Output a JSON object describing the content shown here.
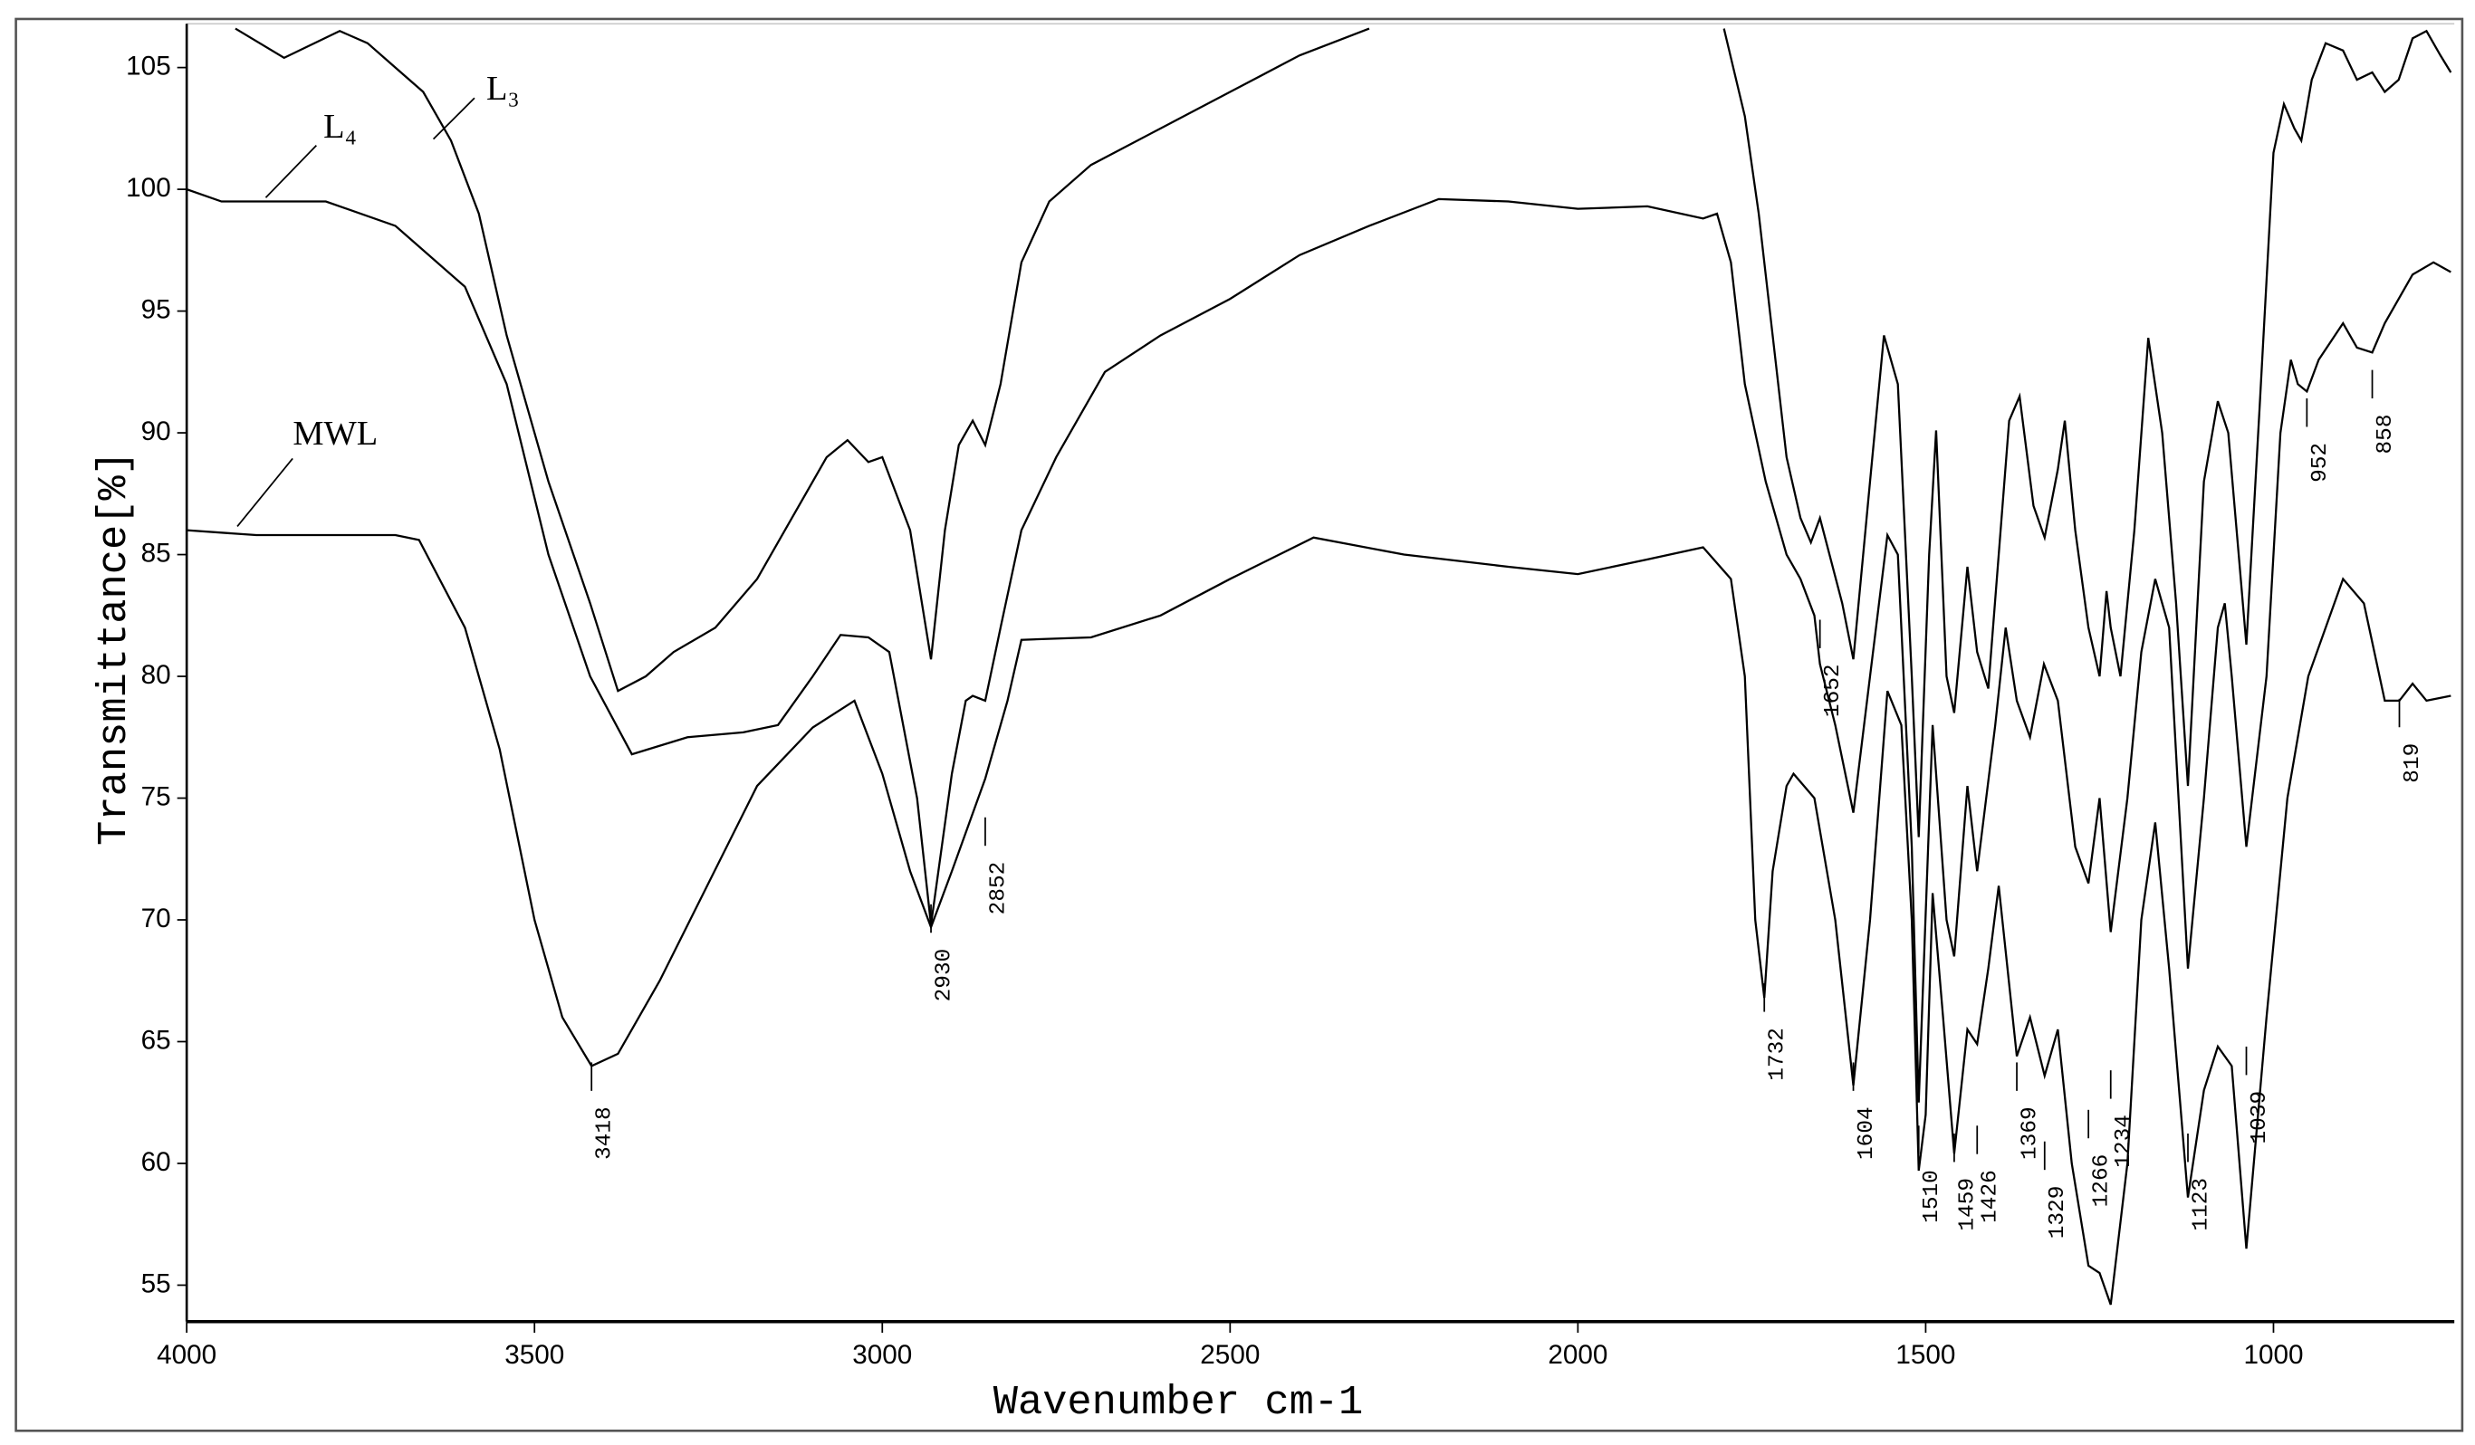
{
  "chart_data": {
    "type": "line",
    "x_label": "Wavenumber cm-1",
    "y_label": "Transmittance[%]",
    "xlim": [
      4000,
      740
    ],
    "xticks": [
      4000,
      3500,
      3000,
      2500,
      2000,
      1500,
      1000
    ],
    "ylim": [
      53.5,
      106.8
    ],
    "yticks": [
      55,
      60,
      65,
      70,
      75,
      80,
      85,
      90,
      95,
      100,
      105
    ],
    "peak_labels": [
      3418,
      2930,
      2852,
      1732,
      1652,
      1604,
      1510,
      1459,
      1426,
      1369,
      1329,
      1266,
      1234,
      1123,
      1039,
      952,
      858,
      819
    ],
    "series": [
      {
        "name": "MWL",
        "color": "#000000",
        "x": [
          4000,
          3900,
          3800,
          3700,
          3666,
          3600,
          3550,
          3500,
          3460,
          3418,
          3380,
          3320,
          3250,
          3180,
          3100,
          3040,
          3000,
          2960,
          2930,
          2900,
          2852,
          2820,
          2800,
          2700,
          2600,
          2500,
          2380,
          2250,
          2100,
          2000,
          1900,
          1820,
          1780,
          1760,
          1745,
          1732,
          1720,
          1700,
          1690,
          1660,
          1630,
          1604,
          1580,
          1555,
          1535,
          1520,
          1510,
          1500,
          1490,
          1475,
          1459,
          1440,
          1426,
          1410,
          1395,
          1369,
          1350,
          1329,
          1310,
          1290,
          1266,
          1250,
          1234,
          1210,
          1190,
          1170,
          1150,
          1123,
          1100,
          1080,
          1060,
          1039,
          1010,
          980,
          950,
          900,
          870,
          840,
          819,
          800,
          780,
          745
        ],
        "values": [
          86,
          85.8,
          85.8,
          85.8,
          85.6,
          82,
          77,
          70,
          66,
          64,
          64.5,
          67.5,
          71.5,
          75.5,
          77.9,
          79,
          76,
          72,
          69.7,
          72,
          75.8,
          79,
          81.5,
          81.6,
          82.5,
          84,
          85.7,
          85,
          84.5,
          84.2,
          84.8,
          85.3,
          84,
          80,
          70,
          66.8,
          72,
          75.5,
          76,
          75,
          70,
          63.2,
          70,
          79.4,
          78,
          70,
          59.7,
          62,
          71.1,
          66,
          60.4,
          65.5,
          64.9,
          68,
          71.4,
          64.4,
          66,
          63.6,
          65.5,
          60,
          55.8,
          55.5,
          54.2,
          60,
          70,
          74,
          68,
          58.6,
          63,
          64.8,
          64,
          56.5,
          66,
          75,
          80,
          84,
          83,
          79,
          79,
          79.7,
          79,
          79.2
        ]
      },
      {
        "name": "L₄",
        "color": "#000000",
        "x": [
          4000,
          3950,
          3800,
          3700,
          3600,
          3540,
          3480,
          3420,
          3360,
          3280,
          3200,
          3150,
          3100,
          3060,
          3020,
          2990,
          2950,
          2930,
          2900,
          2880,
          2870,
          2852,
          2830,
          2800,
          2750,
          2680,
          2600,
          2500,
          2400,
          2300,
          2200,
          2100,
          2000,
          1900,
          1820,
          1800,
          1780,
          1760,
          1730,
          1700,
          1680,
          1660,
          1652,
          1630,
          1604,
          1580,
          1555,
          1540,
          1520,
          1510,
          1490,
          1470,
          1459,
          1440,
          1426,
          1400,
          1385,
          1369,
          1350,
          1330,
          1310,
          1285,
          1266,
          1250,
          1234,
          1210,
          1190,
          1170,
          1150,
          1123,
          1100,
          1080,
          1070,
          1060,
          1039,
          1010,
          990,
          975,
          965,
          952,
          935,
          900,
          880,
          858,
          840,
          800,
          770,
          745
        ],
        "values": [
          100,
          99.5,
          99.5,
          98.5,
          96,
          92,
          85,
          80,
          76.8,
          77.5,
          77.7,
          78,
          80,
          81.7,
          81.6,
          81,
          75,
          69.8,
          76,
          79,
          79.2,
          79,
          82,
          86,
          89,
          92.5,
          94,
          95.5,
          97.3,
          98.5,
          99.6,
          99.5,
          99.2,
          99.3,
          98.8,
          99,
          97,
          92,
          88,
          85,
          84,
          82.5,
          80.5,
          78,
          74.4,
          80,
          85.8,
          85,
          73,
          62.5,
          78,
          70,
          68.5,
          75.5,
          72,
          78,
          82,
          79,
          77.5,
          80.5,
          79,
          73,
          71.5,
          75,
          69.5,
          75,
          81,
          84,
          82,
          68,
          75,
          82,
          83,
          80,
          73,
          80,
          90,
          93,
          92,
          91.7,
          93,
          94.5,
          93.5,
          93.3,
          94.5,
          96.5,
          97,
          96.6
        ]
      },
      {
        "name": "L₃",
        "color": "#000000",
        "x": [
          3930,
          3860,
          3780,
          3740,
          3700,
          3660,
          3620,
          3580,
          3540,
          3480,
          3420,
          3380,
          3340,
          3300,
          3240,
          3180,
          3130,
          3080,
          3050,
          3020,
          3000,
          2960,
          2930,
          2910,
          2890,
          2870,
          2852,
          2830,
          2800,
          2760,
          2700,
          2600,
          2500,
          2400,
          2300,
          2000,
          1790,
          1760,
          1740,
          1720,
          1700,
          1680,
          1665,
          1652,
          1620,
          1604,
          1580,
          1560,
          1540,
          1520,
          1510,
          1495,
          1485,
          1470,
          1459,
          1440,
          1426,
          1410,
          1395,
          1380,
          1365,
          1345,
          1329,
          1310,
          1300,
          1285,
          1266,
          1250,
          1240,
          1234,
          1220,
          1200,
          1180,
          1160,
          1140,
          1123,
          1100,
          1080,
          1065,
          1050,
          1039,
          1020,
          1000,
          985,
          970,
          960,
          945,
          925,
          900,
          880,
          858,
          840,
          820,
          800,
          780,
          760,
          745
        ],
        "values": [
          106.6,
          105.4,
          106.5,
          106,
          105,
          104,
          102,
          99,
          94,
          88,
          83,
          79.4,
          80,
          81,
          82,
          84,
          86.5,
          89,
          89.7,
          88.8,
          89,
          86,
          80.7,
          86,
          89.5,
          90.5,
          89.5,
          92,
          97,
          99.5,
          101,
          102.5,
          104,
          105.5,
          106.6,
          null,
          106.6,
          103,
          99,
          94,
          89,
          86.5,
          85.5,
          86.5,
          83,
          80.7,
          88,
          94,
          92,
          80,
          73.4,
          85,
          90.1,
          80,
          78.5,
          84.5,
          81,
          79.5,
          85,
          90.5,
          91.5,
          87,
          85.7,
          88.5,
          90.5,
          86,
          82,
          80,
          83.5,
          82,
          80,
          86,
          93.9,
          90,
          83,
          75.5,
          88,
          91.3,
          90,
          85,
          81.3,
          91,
          101.5,
          103.5,
          102.5,
          102,
          104.5,
          106,
          105.7,
          104.5,
          104.8,
          104,
          104.5,
          106.2,
          106.5,
          105.5,
          104.8
        ]
      }
    ]
  }
}
